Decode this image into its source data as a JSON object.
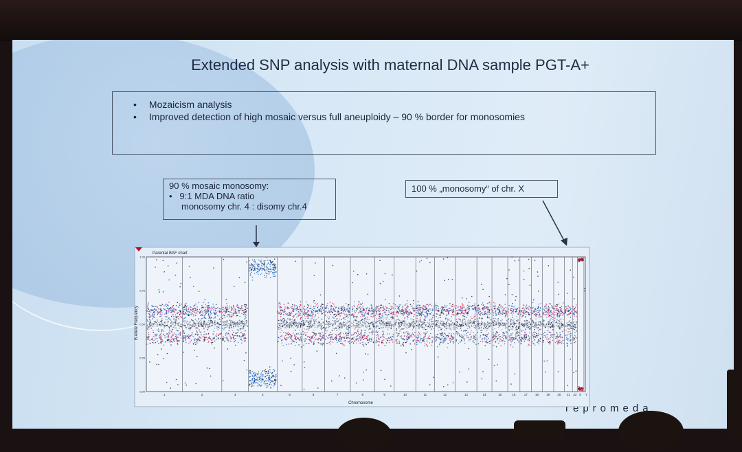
{
  "slide": {
    "title": "Extended SNP analysis with maternal DNA sample PGT-A+",
    "bullets": [
      "Mozaicism analysis",
      "Improved detection of high mosaic versus full aneuploidy – 90 % border for monosomies"
    ],
    "callout_left": {
      "heading": "90 % mosaic monosomy:",
      "bullet_line1": "9:1 MDA DNA ratio",
      "bullet_line2": "monosomy chr. 4 : disomy chr.4"
    },
    "callout_right": "100 % „monosomy“ of chr. X",
    "logo": "repromeda"
  },
  "chart_data": {
    "type": "scatter",
    "title": "Parental BAF chart",
    "xlabel": "Chromosome",
    "ylabel": "B Allele Frequency",
    "ylim": [
      0,
      1
    ],
    "yticks": [
      "0.00",
      "0.25",
      "0.50",
      "0.75",
      "1.00"
    ],
    "categories": [
      "1",
      "2",
      "3",
      "4",
      "5",
      "6",
      "7",
      "8",
      "9",
      "10",
      "11",
      "12",
      "13",
      "14",
      "15",
      "16",
      "17",
      "18",
      "19",
      "20",
      "21",
      "22",
      "X",
      "Y"
    ],
    "relative_lengths": [
      50,
      55,
      37,
      40,
      35,
      31,
      36,
      34,
      27,
      30,
      26,
      29,
      30,
      21,
      22,
      17,
      16,
      15,
      16,
      15,
      11,
      7,
      9,
      2
    ],
    "bands": {
      "disomy": [
        0.4,
        0.5,
        0.6
      ],
      "chr4": [
        0.1,
        0.92
      ],
      "chrX": [
        0.02,
        0.98
      ]
    },
    "colors": {
      "maternal": "#e0306a",
      "paternal": "#2c6fd0",
      "homo": "#8a90a8",
      "marker": "#c4102a"
    }
  }
}
